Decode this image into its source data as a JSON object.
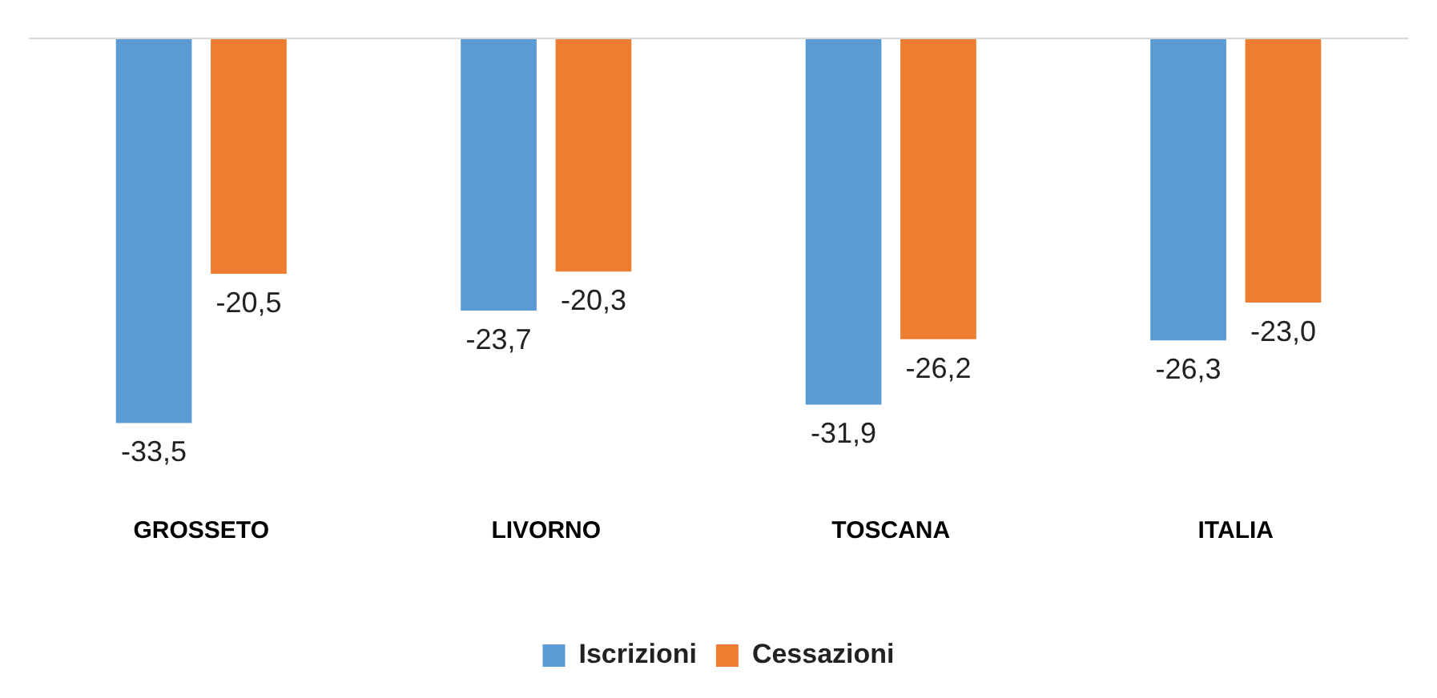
{
  "chart_data": {
    "type": "bar",
    "categories": [
      "GROSSETO",
      "LIVORNO",
      "TOSCANA",
      "ITALIA"
    ],
    "series": [
      {
        "name": "Iscrizioni",
        "color": "#5b9bd5",
        "values": [
          -33.5,
          -23.7,
          -31.9,
          -26.3
        ],
        "value_labels": [
          "-33,5",
          "-23,7",
          "-31,9",
          "-26,3"
        ]
      },
      {
        "name": "Cessazioni",
        "color": "#ed7d31",
        "values": [
          -20.5,
          -20.3,
          -26.2,
          -23.0
        ],
        "value_labels": [
          "-20,5",
          "-20,3",
          "-26,2",
          "-23,0"
        ]
      }
    ],
    "tick_labels": "x",
    "legend": "bottom",
    "grid": false
  }
}
